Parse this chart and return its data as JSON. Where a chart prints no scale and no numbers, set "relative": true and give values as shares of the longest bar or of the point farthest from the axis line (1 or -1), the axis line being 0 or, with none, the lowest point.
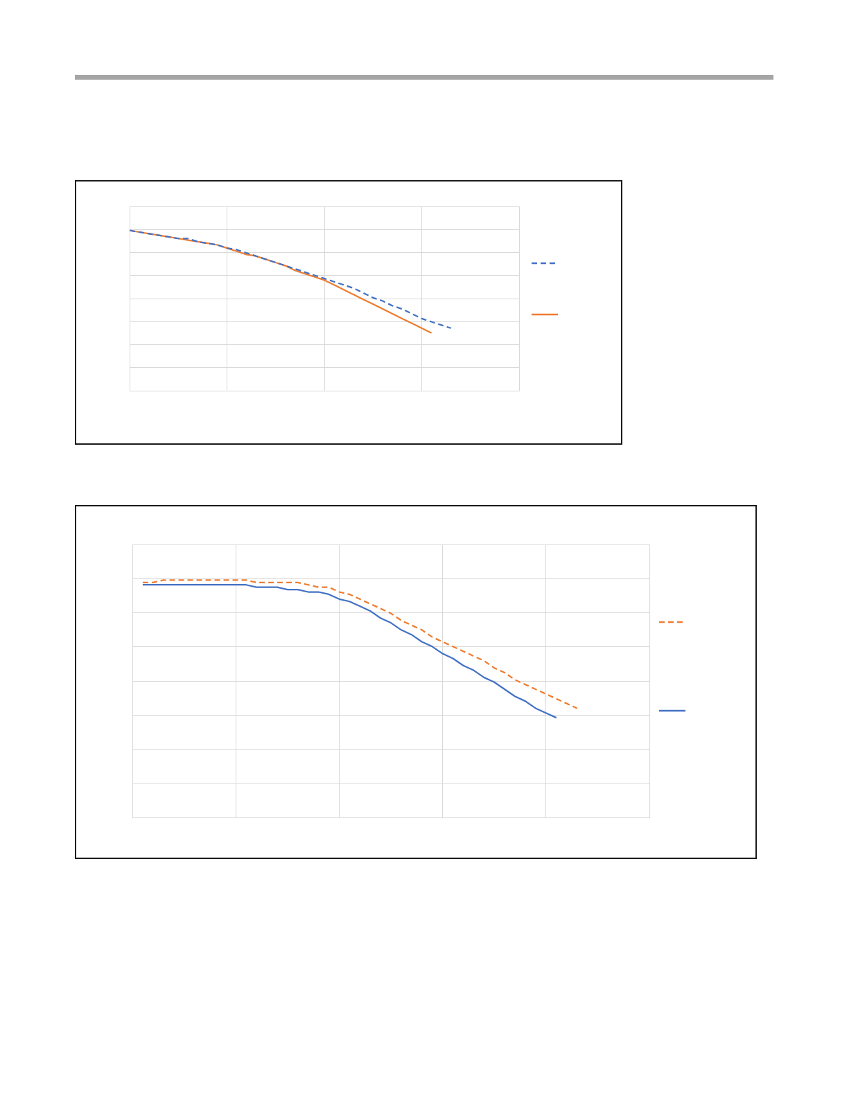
{
  "chart_data": [
    {
      "type": "line",
      "relative": true,
      "grid": true,
      "categories": [
        null,
        null,
        null,
        null,
        null,
        null,
        null,
        null,
        null,
        null,
        null,
        null,
        null,
        null,
        null,
        null,
        null,
        null,
        null,
        null,
        null,
        null,
        null,
        null,
        null,
        null,
        null,
        null,
        null,
        null,
        null,
        null,
        null,
        null,
        null,
        null,
        null,
        null,
        null,
        null,
        null
      ],
      "series": [
        {
          "color": "#4472c4",
          "line_style": "dashed",
          "values": [
            1.0,
            0.99,
            0.98,
            0.97,
            0.96,
            0.95,
            0.95,
            0.93,
            0.92,
            0.91,
            0.89,
            0.88,
            0.86,
            0.84,
            0.82,
            0.8,
            0.78,
            0.76,
            0.74,
            0.72,
            0.7,
            0.68,
            0.66,
            0.64,
            0.61,
            0.58,
            0.56,
            0.53,
            0.51,
            0.48,
            0.45,
            0.43,
            0.41,
            0.39,
            null,
            null,
            null,
            null,
            null,
            null,
            null
          ]
        },
        {
          "color": "#ed7d31",
          "line_style": "solid",
          "values": [
            1.0,
            0.99,
            0.98,
            0.97,
            0.96,
            0.95,
            0.94,
            0.93,
            0.92,
            0.91,
            0.89,
            0.87,
            0.85,
            0.84,
            0.82,
            0.8,
            0.78,
            0.75,
            0.73,
            0.71,
            0.69,
            0.66,
            0.63,
            0.6,
            0.57,
            0.54,
            0.51,
            0.48,
            0.45,
            0.42,
            0.39,
            0.36,
            null,
            null,
            null,
            null,
            null,
            null,
            null,
            null,
            null
          ]
        }
      ]
    },
    {
      "type": "line",
      "relative": true,
      "grid": true,
      "categories": [
        null,
        null,
        null,
        null,
        null,
        null,
        null,
        null,
        null,
        null,
        null,
        null,
        null,
        null,
        null,
        null,
        null,
        null,
        null,
        null,
        null,
        null,
        null,
        null,
        null,
        null,
        null,
        null,
        null,
        null,
        null,
        null,
        null,
        null,
        null,
        null,
        null,
        null,
        null,
        null,
        null,
        null,
        null,
        null,
        null,
        null,
        null,
        null,
        null,
        null,
        null
      ],
      "series": [
        {
          "color": "#ed7d31",
          "line_style": "dashed",
          "values": [
            null,
            0.99,
            0.99,
            1.0,
            1.0,
            1.0,
            1.0,
            1.0,
            1.0,
            1.0,
            1.0,
            1.0,
            0.99,
            0.99,
            0.99,
            0.99,
            0.99,
            0.98,
            0.97,
            0.97,
            0.95,
            0.94,
            0.92,
            0.9,
            0.88,
            0.86,
            0.83,
            0.81,
            0.79,
            0.76,
            0.74,
            0.72,
            0.7,
            0.68,
            0.66,
            0.63,
            0.61,
            0.58,
            0.56,
            0.54,
            0.52,
            0.5,
            0.48,
            0.46,
            null,
            null,
            null,
            null,
            null,
            null,
            null
          ]
        },
        {
          "color": "#4472c4",
          "line_style": "solid",
          "values": [
            null,
            0.98,
            0.98,
            0.98,
            0.98,
            0.98,
            0.98,
            0.98,
            0.98,
            0.98,
            0.98,
            0.98,
            0.97,
            0.97,
            0.97,
            0.96,
            0.96,
            0.95,
            0.95,
            0.94,
            0.92,
            0.91,
            0.89,
            0.87,
            0.84,
            0.82,
            0.79,
            0.77,
            0.74,
            0.72,
            0.69,
            0.67,
            0.64,
            0.62,
            0.59,
            0.57,
            0.54,
            0.51,
            0.49,
            0.46,
            0.44,
            0.42,
            null,
            null,
            null,
            null,
            null,
            null,
            null,
            null,
            null
          ]
        }
      ]
    }
  ]
}
